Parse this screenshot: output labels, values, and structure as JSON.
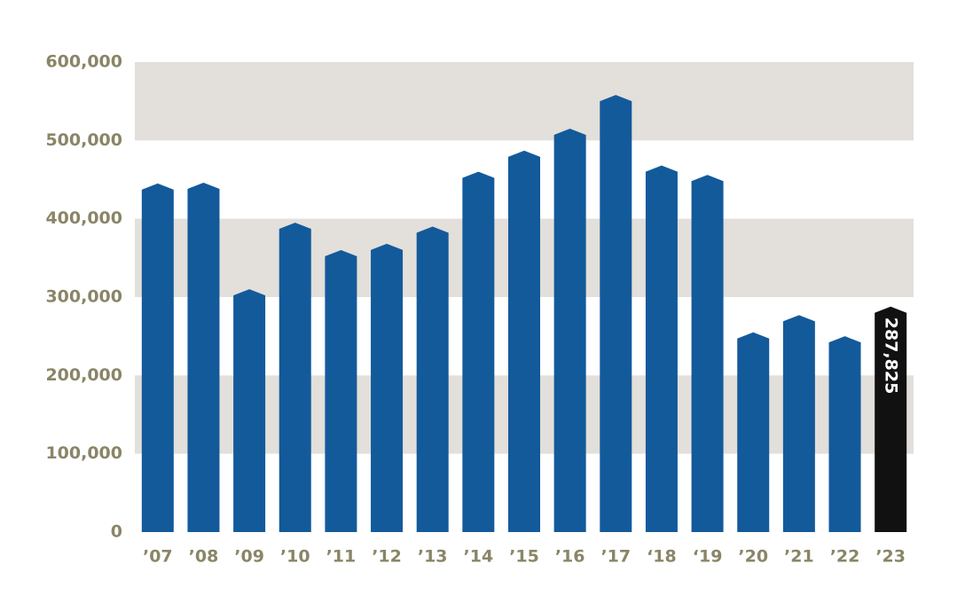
{
  "chart_data": {
    "type": "bar",
    "categories": [
      "’07",
      "’08",
      "’09",
      "’10",
      "’11",
      "’12",
      "’13",
      "’14",
      "’15",
      "’16",
      "’17",
      "‘18",
      "‘19",
      "’20",
      "’21",
      "’22",
      "’23"
    ],
    "values": [
      445000,
      446000,
      310000,
      395000,
      360000,
      368000,
      390000,
      460000,
      487000,
      515000,
      558000,
      468000,
      456000,
      255000,
      277000,
      250000,
      287825
    ],
    "value_labels": [
      null,
      null,
      null,
      null,
      null,
      null,
      null,
      null,
      null,
      null,
      null,
      null,
      null,
      null,
      null,
      null,
      "287,825"
    ],
    "colors": [
      "#135a9b",
      "#135a9b",
      "#135a9b",
      "#135a9b",
      "#135a9b",
      "#135a9b",
      "#135a9b",
      "#135a9b",
      "#135a9b",
      "#135a9b",
      "#135a9b",
      "#135a9b",
      "#135a9b",
      "#135a9b",
      "#135a9b",
      "#135a9b",
      "#111111"
    ],
    "ylim": [
      0,
      600000
    ],
    "yticks": [
      {
        "value": 0,
        "label": "0"
      },
      {
        "value": 100000,
        "label": "100,000"
      },
      {
        "value": 200000,
        "label": "200,000"
      },
      {
        "value": 300000,
        "label": "300,000"
      },
      {
        "value": 400000,
        "label": "400,000"
      },
      {
        "value": 500000,
        "label": "500,000"
      },
      {
        "value": 600000,
        "label": "600,000"
      }
    ],
    "grid": "bands",
    "grid_color": "#e3dfda"
  }
}
